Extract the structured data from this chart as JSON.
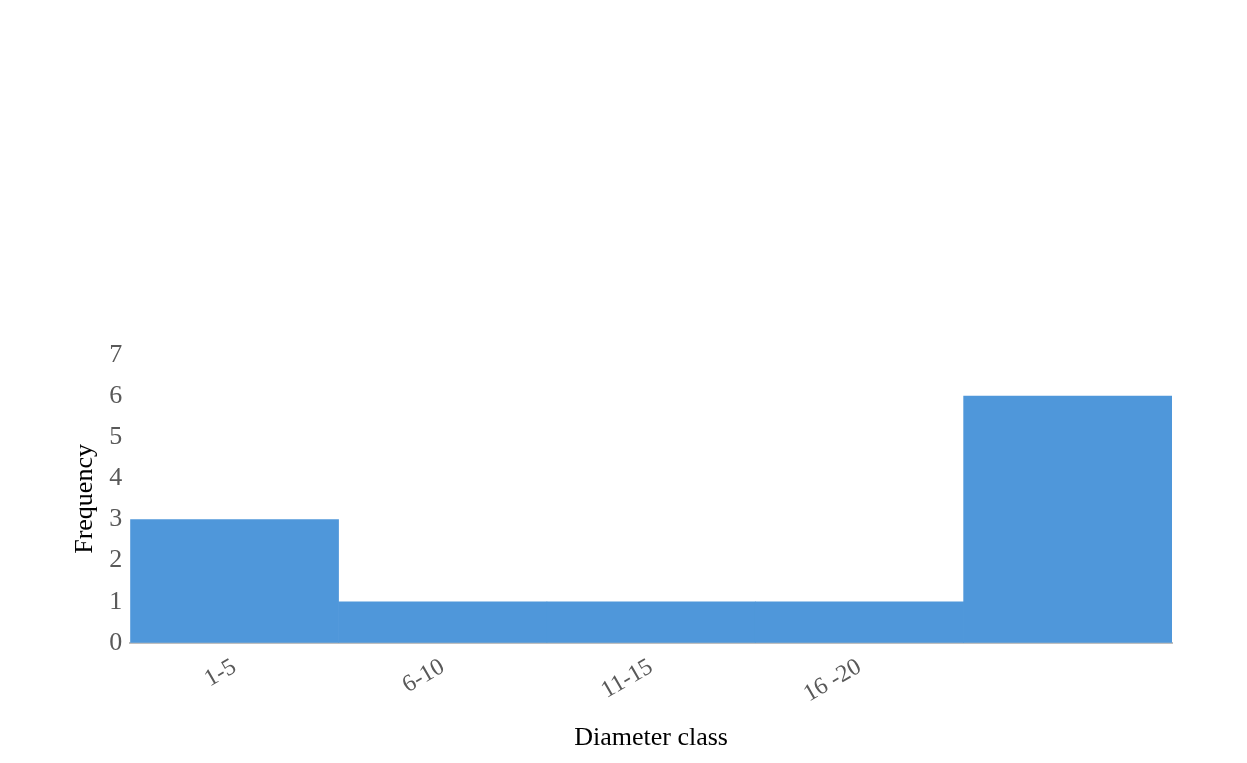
{
  "chart_data": {
    "type": "bar",
    "xlabel": "Diameter class",
    "ylabel": "Frequency",
    "categories": [
      "1-5",
      "6-10",
      "11-15",
      "16 -20",
      null
    ],
    "values": [
      3,
      1,
      1,
      1,
      6
    ],
    "color": "#4f97da",
    "ylim": [
      0,
      7
    ],
    "yticks": [
      0,
      1,
      2,
      3,
      4,
      5,
      6,
      7
    ],
    "grid": false,
    "legend": false
  }
}
